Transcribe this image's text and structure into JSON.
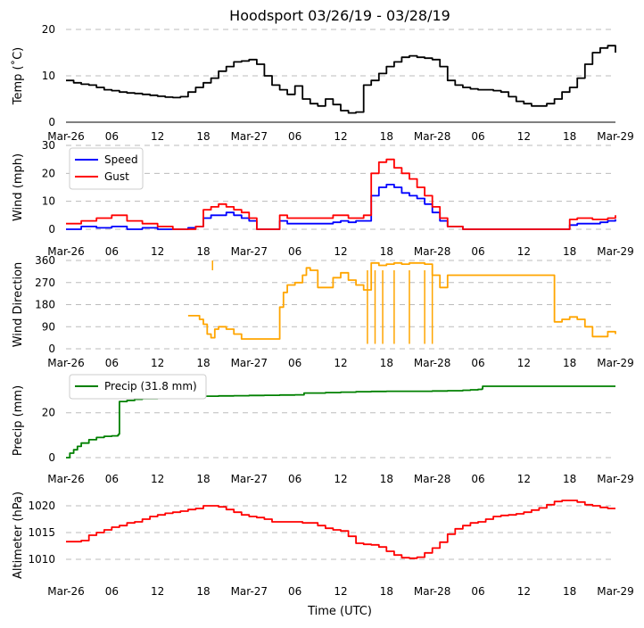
{
  "title": "Hoodsport 03/26/19 - 03/28/19",
  "xlabel": "Time (UTC)",
  "colors": {
    "speed": "#0000ff",
    "gust": "#ff0000",
    "direction": "#ffa500",
    "precip": "#008000",
    "temp": "#000000",
    "altimeter": "#ff0000",
    "grid": "#bbbbbb"
  },
  "chart_data": {
    "type": "line",
    "title": "Hoodsport 03/26/19 - 03/28/19",
    "xlabel": "Time (UTC)",
    "x_range_hours": [
      0,
      72
    ],
    "x_ticks": [
      {
        "h": 0,
        "label": "Mar-26"
      },
      {
        "h": 6,
        "label": "06"
      },
      {
        "h": 12,
        "label": "12"
      },
      {
        "h": 18,
        "label": "18"
      },
      {
        "h": 24,
        "label": "Mar-27"
      },
      {
        "h": 30,
        "label": "06"
      },
      {
        "h": 36,
        "label": "12"
      },
      {
        "h": 42,
        "label": "18"
      },
      {
        "h": 48,
        "label": "Mar-28"
      },
      {
        "h": 54,
        "label": "06"
      },
      {
        "h": 60,
        "label": "12"
      },
      {
        "h": 66,
        "label": "18"
      },
      {
        "h": 72,
        "label": "Mar-29"
      }
    ],
    "panels": [
      {
        "id": "temp",
        "ylabel": "Temp ($^\\circ$C)",
        "ylabel_display": "Temp (˚C)",
        "ylim": [
          0,
          20
        ],
        "yticks": [
          0,
          10,
          20
        ],
        "series": [
          {
            "name": "Temp",
            "color": "#000000",
            "x": [
              0,
              1,
              2,
              3,
              4,
              5,
              6,
              7,
              8,
              9,
              10,
              11,
              12,
              13,
              14,
              15,
              16,
              17,
              18,
              19,
              20,
              21,
              22,
              23,
              24,
              25,
              26,
              27,
              28,
              29,
              30,
              31,
              32,
              33,
              34,
              35,
              36,
              37,
              38,
              39,
              40,
              41,
              42,
              43,
              44,
              45,
              46,
              47,
              48,
              49,
              50,
              51,
              52,
              53,
              54,
              55,
              56,
              57,
              58,
              59,
              60,
              61,
              62,
              63,
              64,
              65,
              66,
              67,
              68,
              69,
              70,
              71,
              72
            ],
            "y": [
              9,
              8.5,
              8.2,
              8,
              7.5,
              7,
              6.8,
              6.5,
              6.3,
              6.2,
              6,
              5.8,
              5.6,
              5.4,
              5.3,
              5.5,
              6.5,
              7.5,
              8.5,
              9.5,
              11,
              12,
              13,
              13.2,
              13.5,
              12.5,
              10,
              8,
              7,
              6,
              7.8,
              5,
              4,
              3.5,
              5,
              3.8,
              2.5,
              2,
              2.2,
              8,
              9,
              10.5,
              12,
              13,
              14,
              14.3,
              14,
              13.8,
              13.5,
              12,
              9,
              8,
              7.5,
              7.2,
              7,
              7,
              6.8,
              6.5,
              5.5,
              4.5,
              4,
              3.5,
              3.5,
              4,
              5,
              6.5,
              7.5,
              9.5,
              12.5,
              15,
              16,
              16.5,
              15
            ]
          }
        ]
      },
      {
        "id": "wind",
        "ylabel": "Wind (mph)",
        "ylim": [
          0,
          30
        ],
        "yticks": [
          0,
          10,
          20,
          30
        ],
        "legend": [
          "Speed",
          "Gust"
        ],
        "series": [
          {
            "name": "Speed",
            "color": "#0000ff",
            "x": [
              0,
              2,
              4,
              6,
              8,
              10,
              12,
              14,
              15,
              16,
              17,
              18,
              19,
              20,
              21,
              22,
              23,
              24,
              25,
              26,
              27,
              28,
              29,
              30,
              31,
              32,
              33,
              34,
              35,
              36,
              37,
              38,
              39,
              40,
              41,
              42,
              43,
              44,
              45,
              46,
              47,
              48,
              49,
              50,
              52,
              54,
              56,
              58,
              60,
              62,
              64,
              65,
              66,
              67,
              68,
              69,
              70,
              71,
              72
            ],
            "y": [
              0,
              1,
              0.5,
              1,
              0,
              0.5,
              0,
              0,
              0,
              0.5,
              1,
              4,
              5,
              5,
              6,
              5,
              4,
              3,
              0,
              0,
              0,
              3,
              2,
              2,
              2,
              2,
              2,
              2,
              2.5,
              3,
              2.5,
              3,
              3,
              12,
              15,
              16,
              15,
              13,
              12,
              11,
              9,
              6,
              3,
              1,
              0,
              0,
              0,
              0,
              0,
              0,
              0,
              0,
              1.5,
              2,
              2,
              2,
              2.5,
              3,
              3.5
            ]
          },
          {
            "name": "Gust",
            "color": "#ff0000",
            "x": [
              0,
              2,
              4,
              6,
              8,
              10,
              12,
              14,
              15,
              16,
              17,
              18,
              19,
              20,
              21,
              22,
              23,
              24,
              25,
              26,
              27,
              28,
              29,
              30,
              31,
              32,
              33,
              34,
              35,
              36,
              37,
              38,
              39,
              40,
              41,
              42,
              43,
              44,
              45,
              46,
              47,
              48,
              49,
              50,
              52,
              54,
              56,
              58,
              60,
              62,
              64,
              65,
              66,
              67,
              68,
              69,
              70,
              71,
              72
            ],
            "y": [
              2,
              3,
              4,
              5,
              3,
              2,
              1,
              0,
              0,
              0,
              1,
              7,
              8,
              9,
              8,
              7,
              6,
              4,
              0,
              0,
              0,
              5,
              4,
              4,
              4,
              4,
              4,
              4,
              5,
              5,
              4,
              4,
              5,
              20,
              24,
              25,
              22,
              20,
              18,
              15,
              12,
              8,
              4,
              1,
              0,
              0,
              0,
              0,
              0,
              0,
              0,
              0,
              3.5,
              4,
              4,
              3.5,
              3.5,
              4,
              5
            ]
          }
        ]
      },
      {
        "id": "direction",
        "ylabel": "Wind Direction",
        "ylim": [
          0,
          360
        ],
        "yticks": [
          0,
          90,
          180,
          270,
          360
        ],
        "series": [
          {
            "name": "Direction",
            "color": "#ffa500",
            "x": [
              16,
              17,
              17.5,
              18,
              18.5,
              19,
              19.5,
              20,
              21,
              22,
              23,
              24,
              28,
              28.5,
              29,
              30,
              31,
              31.5,
              32,
              33,
              34,
              35,
              36,
              37,
              38,
              39,
              40,
              41,
              42,
              43,
              44,
              45,
              46,
              47,
              48,
              49,
              50,
              64,
              65,
              66,
              67,
              68,
              69,
              70,
              71,
              72
            ],
            "y": [
              135,
              135,
              120,
              100,
              60,
              45,
              80,
              90,
              80,
              60,
              40,
              40,
              170,
              230,
              260,
              270,
              300,
              330,
              320,
              250,
              250,
              290,
              310,
              280,
              260,
              240,
              350,
              340,
              345,
              350,
              345,
              350,
              350,
              345,
              300,
              250,
              300,
              110,
              120,
              130,
              120,
              90,
              50,
              50,
              70,
              60
            ]
          }
        ],
        "spikes": [
          {
            "x": 19.2,
            "y": 360
          },
          {
            "x": 39.5,
            "y": 20
          },
          {
            "x": 40.5,
            "y": 20
          },
          {
            "x": 41.5,
            "y": 20
          },
          {
            "x": 43,
            "y": 20
          },
          {
            "x": 45,
            "y": 20
          },
          {
            "x": 47,
            "y": 20
          },
          {
            "x": 48,
            "y": 20
          }
        ]
      },
      {
        "id": "precip",
        "ylabel": "Precip (mm)",
        "ylim": [
          0,
          33
        ],
        "yticks": [
          0,
          20
        ],
        "legend": [
          "Precip (31.8 mm)"
        ],
        "series": [
          {
            "name": "Precip (31.8 mm)",
            "color": "#008000",
            "x": [
              0,
              0.5,
              1,
              1.5,
              2,
              3,
              4,
              5,
              6,
              6.8,
              6.9,
              7,
              8,
              9,
              10,
              12,
              14,
              16,
              18,
              20,
              22,
              24,
              26,
              28,
              30,
              31,
              31.2,
              34,
              36,
              38,
              40,
              42,
              44,
              46,
              48,
              50,
              52,
              53,
              54,
              54.5,
              54.6,
              56,
              58,
              60,
              62,
              64,
              66,
              68,
              70,
              72
            ],
            "y": [
              0,
              2,
              3.5,
              5,
              6.5,
              8,
              9,
              9.5,
              9.7,
              10,
              10.5,
              25,
              25.5,
              26,
              26.3,
              26.6,
              27,
              27.2,
              27.4,
              27.5,
              27.6,
              27.7,
              27.8,
              27.9,
              28,
              28,
              28.8,
              29,
              29.2,
              29.4,
              29.5,
              29.6,
              29.6,
              29.6,
              29.7,
              29.8,
              30,
              30.2,
              30.4,
              30.6,
              31.8,
              31.8,
              31.8,
              31.8,
              31.8,
              31.8,
              31.8,
              31.8,
              31.8,
              31.8
            ]
          }
        ]
      },
      {
        "id": "altimeter",
        "ylabel": "Altimeter (hPa)",
        "ylim": [
          1006.5,
          1022.5
        ],
        "yticks": [
          1010,
          1015,
          1020
        ],
        "series": [
          {
            "name": "Altimeter",
            "color": "#ff0000",
            "x": [
              0,
              1,
              2,
              3,
              4,
              5,
              6,
              7,
              8,
              9,
              10,
              11,
              12,
              13,
              14,
              15,
              16,
              17,
              18,
              19,
              20,
              21,
              22,
              23,
              24,
              25,
              26,
              27,
              28,
              29,
              30,
              31,
              32,
              33,
              34,
              35,
              36,
              37,
              38,
              39,
              40,
              41,
              42,
              43,
              44,
              45,
              46,
              47,
              48,
              49,
              50,
              51,
              52,
              53,
              54,
              55,
              56,
              57,
              58,
              59,
              60,
              61,
              62,
              63,
              64,
              65,
              66,
              67,
              68,
              69,
              70,
              71,
              72
            ],
            "y": [
              1013.3,
              1013.3,
              1013.5,
              1014.5,
              1015,
              1015.5,
              1016,
              1016.3,
              1016.8,
              1017,
              1017.5,
              1018,
              1018.3,
              1018.6,
              1018.8,
              1019,
              1019.3,
              1019.5,
              1020,
              1020,
              1019.8,
              1019.3,
              1018.8,
              1018.3,
              1018,
              1017.8,
              1017.5,
              1017,
              1017,
              1017,
              1017,
              1016.8,
              1016.8,
              1016.3,
              1015.8,
              1015.5,
              1015.3,
              1014.3,
              1013,
              1012.8,
              1012.7,
              1012.3,
              1011.5,
              1010.8,
              1010.3,
              1010.2,
              1010.4,
              1011.2,
              1012.1,
              1013.2,
              1014.7,
              1015.7,
              1016.3,
              1016.8,
              1017,
              1017.5,
              1018,
              1018.2,
              1018.3,
              1018.5,
              1018.8,
              1019.2,
              1019.6,
              1020.2,
              1020.8,
              1021,
              1021,
              1020.7,
              1020.2,
              1020,
              1019.7,
              1019.5,
              1019.5
            ]
          }
        ]
      }
    ]
  }
}
